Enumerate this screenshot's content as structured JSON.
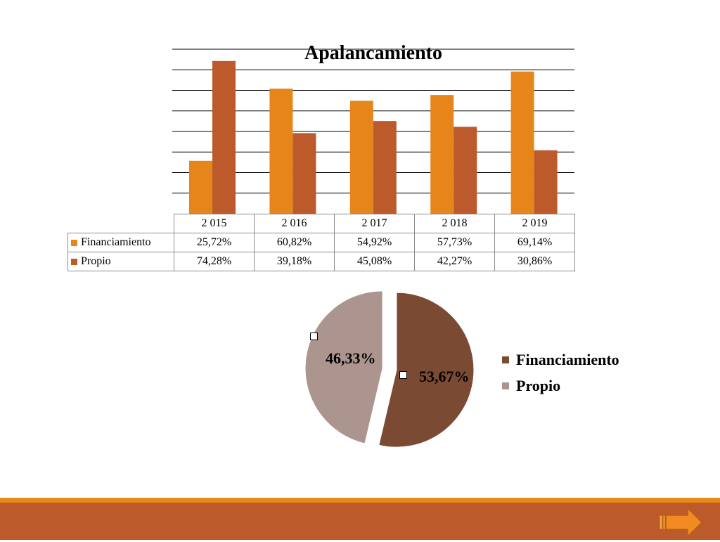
{
  "chart_data": [
    {
      "type": "bar",
      "title": "Apalancamiento",
      "categories": [
        "2 015",
        "2 016",
        "2 017",
        "2 018",
        "2 019"
      ],
      "series": [
        {
          "name": "Financiamiento",
          "color": "#e6861a",
          "values": [
            25.72,
            60.82,
            54.92,
            57.73,
            69.14
          ],
          "labels": [
            "25,72%",
            "60,82%",
            "54,92%",
            "57,73%",
            "69,14%"
          ]
        },
        {
          "name": "Propio",
          "color": "#bc5a2b",
          "values": [
            74.28,
            39.18,
            45.08,
            42.27,
            30.86
          ],
          "labels": [
            "74,28%",
            "39,18%",
            "45,08%",
            "42,27%",
            "30,86%"
          ]
        }
      ],
      "ylim": [
        0,
        80
      ],
      "grid": true,
      "legend": "data-table"
    },
    {
      "type": "pie",
      "slices": [
        {
          "name": "Financiamiento",
          "value": 53.67,
          "label": "53,67%",
          "color": "#7a4a33"
        },
        {
          "name": "Propio",
          "value": 46.33,
          "label": "46,33%",
          "color": "#ab958e"
        }
      ],
      "legend": "right"
    }
  ],
  "navigation": {
    "next_icon": "arrow-right-icon",
    "accent": "#e8891a",
    "footer_color": "#bc5a2b"
  }
}
